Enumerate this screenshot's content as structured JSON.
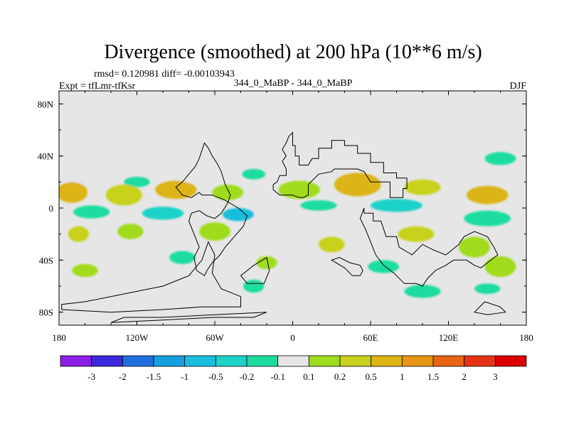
{
  "chart_data": {
    "type": "heatmap",
    "title": "Divergence (smoothed) at 200 hPa (10**6 m/s)",
    "stats": "rmsd= 0.120981 diff= -0.00103943",
    "experiment": "Expt = tfLmr-tfKsr",
    "center_label": "344_0_MaBP - 344_0_MaBP",
    "season": "DJF",
    "xlim": [
      -180,
      180
    ],
    "ylim": [
      -90,
      90
    ],
    "x_ticks": [
      {
        "value": -180,
        "label": "180"
      },
      {
        "value": -120,
        "label": "120W"
      },
      {
        "value": -60,
        "label": "60W"
      },
      {
        "value": 0,
        "label": "0"
      },
      {
        "value": 60,
        "label": "60E"
      },
      {
        "value": 120,
        "label": "120E"
      },
      {
        "value": 180,
        "label": "180"
      }
    ],
    "y_ticks": [
      {
        "value": 80,
        "label": "80N"
      },
      {
        "value": 40,
        "label": "40N"
      },
      {
        "value": 0,
        "label": "0"
      },
      {
        "value": -40,
        "label": "40S"
      },
      {
        "value": -80,
        "label": "80S"
      }
    ],
    "colorbar": {
      "labels": [
        "-3",
        "-2",
        "-1.5",
        "-1",
        "-0.5",
        "-0.2",
        "-0.1",
        "0.1",
        "0.2",
        "0.5",
        "1",
        "1.5",
        "2",
        "3"
      ],
      "colors": [
        "#8c1ee6",
        "#3c28dc",
        "#1e6edc",
        "#14a0dc",
        "#18bedc",
        "#1ed2c8",
        "#1edca0",
        "#e6e6e6",
        "#a0dc1e",
        "#c8d21e",
        "#dcb414",
        "#e69614",
        "#e66414",
        "#e63214",
        "#dc0000"
      ]
    },
    "field_patches": [
      {
        "lon": -165,
        "lat": 22,
        "rlon": 14,
        "rlat": 5,
        "class": 7
      },
      {
        "lon": -120,
        "lat": 20,
        "rlon": 10,
        "rlat": 4,
        "class": 6
      },
      {
        "lon": -78,
        "lat": 24,
        "rlon": 12,
        "rlat": 5,
        "class": 7
      },
      {
        "lon": -30,
        "lat": 26,
        "rlon": 9,
        "rlat": 4,
        "class": 6
      },
      {
        "lon": 0,
        "lat": 40,
        "rlon": 10,
        "rlat": 4,
        "class": 7
      },
      {
        "lon": 40,
        "lat": 38,
        "rlon": 12,
        "rlat": 5,
        "class": 7
      },
      {
        "lon": 100,
        "lat": 40,
        "rlon": 14,
        "rlat": 5,
        "class": 7
      },
      {
        "lon": 160,
        "lat": 38,
        "rlon": 12,
        "rlat": 5,
        "class": 6
      },
      {
        "lon": -170,
        "lat": 12,
        "rlon": 12,
        "rlat": 8,
        "class": 10
      },
      {
        "lon": -130,
        "lat": 10,
        "rlon": 14,
        "rlat": 8,
        "class": 9
      },
      {
        "lon": -90,
        "lat": 14,
        "rlon": 16,
        "rlat": 7,
        "class": 10
      },
      {
        "lon": -50,
        "lat": 12,
        "rlon": 12,
        "rlat": 6,
        "class": 8
      },
      {
        "lon": 5,
        "lat": 14,
        "rlon": 16,
        "rlat": 7,
        "class": 8
      },
      {
        "lon": 50,
        "lat": 18,
        "rlon": 18,
        "rlat": 9,
        "class": 10
      },
      {
        "lon": 100,
        "lat": 16,
        "rlon": 14,
        "rlat": 6,
        "class": 9
      },
      {
        "lon": 150,
        "lat": 10,
        "rlon": 16,
        "rlat": 7,
        "class": 10
      },
      {
        "lon": -155,
        "lat": -3,
        "rlon": 14,
        "rlat": 5,
        "class": 6
      },
      {
        "lon": -100,
        "lat": -4,
        "rlon": 16,
        "rlat": 5,
        "class": 5
      },
      {
        "lon": -42,
        "lat": -5,
        "rlon": 12,
        "rlat": 5,
        "class": 4
      },
      {
        "lon": 20,
        "lat": 2,
        "rlon": 14,
        "rlat": 4,
        "class": 6
      },
      {
        "lon": 80,
        "lat": 2,
        "rlon": 20,
        "rlat": 5,
        "class": 5
      },
      {
        "lon": 150,
        "lat": -8,
        "rlon": 18,
        "rlat": 6,
        "class": 6
      },
      {
        "lon": -165,
        "lat": -20,
        "rlon": 8,
        "rlat": 6,
        "class": 9
      },
      {
        "lon": -125,
        "lat": -18,
        "rlon": 10,
        "rlat": 6,
        "class": 8
      },
      {
        "lon": -60,
        "lat": -18,
        "rlon": 12,
        "rlat": 7,
        "class": 8
      },
      {
        "lon": 30,
        "lat": -28,
        "rlon": 10,
        "rlat": 6,
        "class": 9
      },
      {
        "lon": 95,
        "lat": -20,
        "rlon": 14,
        "rlat": 6,
        "class": 9
      },
      {
        "lon": 140,
        "lat": -30,
        "rlon": 12,
        "rlat": 8,
        "class": 8
      },
      {
        "lon": -85,
        "lat": -38,
        "rlon": 10,
        "rlat": 5,
        "class": 6
      },
      {
        "lon": -20,
        "lat": -42,
        "rlon": 8,
        "rlat": 5,
        "class": 8
      },
      {
        "lon": 70,
        "lat": -45,
        "rlon": 12,
        "rlat": 5,
        "class": 6
      },
      {
        "lon": 160,
        "lat": -45,
        "rlon": 12,
        "rlat": 8,
        "class": 8
      },
      {
        "lon": -160,
        "lat": -48,
        "rlon": 10,
        "rlat": 5,
        "class": 8
      },
      {
        "lon": -30,
        "lat": -60,
        "rlon": 8,
        "rlat": 5,
        "class": 6
      },
      {
        "lon": 100,
        "lat": -64,
        "rlon": 14,
        "rlat": 5,
        "class": 6
      },
      {
        "lon": 150,
        "lat": -62,
        "rlon": 10,
        "rlat": 4,
        "class": 6
      }
    ],
    "continents": [
      [
        [
          0,
          58
        ],
        [
          0,
          48
        ],
        [
          2,
          48
        ],
        [
          2,
          40
        ],
        [
          5,
          40
        ],
        [
          5,
          33
        ],
        [
          12,
          33
        ],
        [
          15,
          38
        ],
        [
          20,
          38
        ],
        [
          20,
          46
        ],
        [
          30,
          46
        ],
        [
          30,
          52
        ],
        [
          40,
          52
        ],
        [
          40,
          48
        ],
        [
          50,
          48
        ],
        [
          50,
          42
        ],
        [
          60,
          42
        ],
        [
          60,
          35
        ],
        [
          70,
          35
        ],
        [
          70,
          27
        ],
        [
          80,
          27
        ],
        [
          80,
          23
        ],
        [
          88,
          23
        ],
        [
          88,
          15
        ],
        [
          85,
          15
        ],
        [
          85,
          8
        ],
        [
          75,
          8
        ],
        [
          75,
          20
        ],
        [
          60,
          20
        ],
        [
          55,
          28
        ],
        [
          50,
          30
        ],
        [
          40,
          30
        ],
        [
          32,
          30
        ],
        [
          30,
          28
        ],
        [
          20,
          26
        ],
        [
          12,
          18
        ],
        [
          12,
          10
        ],
        [
          8,
          8
        ],
        [
          5,
          8
        ],
        [
          0,
          10
        ],
        [
          -10,
          10
        ],
        [
          -15,
          14
        ],
        [
          -15,
          18
        ],
        [
          -12,
          20
        ],
        [
          -10,
          25
        ],
        [
          -5,
          25
        ],
        [
          -5,
          30
        ],
        [
          -8,
          36
        ],
        [
          -5,
          40
        ],
        [
          -8,
          45
        ],
        [
          -5,
          50
        ],
        [
          -3,
          55
        ],
        [
          0,
          58
        ]
      ],
      [
        [
          -55,
          28
        ],
        [
          -58,
          34
        ],
        [
          -62,
          40
        ],
        [
          -65,
          46
        ],
        [
          -68,
          50
        ],
        [
          -72,
          38
        ],
        [
          -75,
          32
        ],
        [
          -80,
          26
        ],
        [
          -85,
          20
        ],
        [
          -90,
          16
        ],
        [
          -85,
          10
        ],
        [
          -78,
          8
        ],
        [
          -72,
          12
        ],
        [
          -70,
          10
        ],
        [
          -62,
          10
        ],
        [
          -52,
          6
        ],
        [
          -42,
          0
        ],
        [
          -35,
          -6
        ],
        [
          -38,
          -14
        ],
        [
          -45,
          -22
        ],
        [
          -52,
          -30
        ],
        [
          -56,
          -36
        ],
        [
          -62,
          -42
        ],
        [
          -66,
          -48
        ],
        [
          -68,
          -52
        ],
        [
          -74,
          -48
        ],
        [
          -76,
          -38
        ],
        [
          -72,
          -30
        ],
        [
          -76,
          -20
        ],
        [
          -80,
          -10
        ],
        [
          -78,
          -4
        ],
        [
          -72,
          -2
        ],
        [
          -66,
          -6
        ],
        [
          -60,
          -8
        ],
        [
          -55,
          -4
        ],
        [
          -50,
          4
        ],
        [
          -48,
          10
        ],
        [
          -52,
          18
        ],
        [
          -55,
          28
        ]
      ],
      [
        [
          -65,
          -26
        ],
        [
          -70,
          -40
        ],
        [
          -80,
          -52
        ],
        [
          -100,
          -60
        ],
        [
          -130,
          -66
        ],
        [
          -160,
          -72
        ],
        [
          -178,
          -74
        ],
        [
          -178,
          -78
        ],
        [
          -140,
          -80
        ],
        [
          -100,
          -78
        ],
        [
          -70,
          -76
        ],
        [
          -40,
          -76
        ],
        [
          -40,
          -68
        ],
        [
          -55,
          -62
        ],
        [
          -62,
          -50
        ],
        [
          -60,
          -36
        ],
        [
          -65,
          -26
        ]
      ],
      [
        [
          -20,
          -38
        ],
        [
          -30,
          -44
        ],
        [
          -40,
          -52
        ],
        [
          -35,
          -58
        ],
        [
          -22,
          -58
        ],
        [
          -18,
          -48
        ],
        [
          -20,
          -38
        ]
      ],
      [
        [
          55,
          0
        ],
        [
          55,
          -4
        ],
        [
          62,
          -4
        ],
        [
          62,
          -10
        ],
        [
          68,
          -10
        ],
        [
          72,
          -22
        ],
        [
          80,
          -22
        ],
        [
          82,
          -30
        ],
        [
          92,
          -36
        ],
        [
          100,
          -28
        ],
        [
          108,
          -32
        ],
        [
          118,
          -36
        ],
        [
          128,
          -28
        ],
        [
          132,
          -22
        ],
        [
          140,
          -18
        ],
        [
          150,
          -22
        ],
        [
          155,
          -30
        ],
        [
          158,
          -36
        ],
        [
          150,
          -42
        ],
        [
          145,
          -46
        ],
        [
          140,
          -44
        ],
        [
          134,
          -40
        ],
        [
          124,
          -40
        ],
        [
          118,
          -44
        ],
        [
          110,
          -48
        ],
        [
          104,
          -54
        ],
        [
          100,
          -60
        ],
        [
          95,
          -58
        ],
        [
          86,
          -58
        ],
        [
          78,
          -50
        ],
        [
          70,
          -44
        ],
        [
          64,
          -36
        ],
        [
          60,
          -26
        ],
        [
          56,
          -16
        ],
        [
          52,
          -8
        ],
        [
          55,
          0
        ]
      ],
      [
        [
          30,
          -40
        ],
        [
          40,
          -46
        ],
        [
          46,
          -52
        ],
        [
          52,
          -52
        ],
        [
          54,
          -48
        ],
        [
          52,
          -44
        ],
        [
          44,
          -42
        ],
        [
          36,
          -38
        ],
        [
          30,
          -40
        ]
      ],
      [
        [
          148,
          -72
        ],
        [
          160,
          -76
        ],
        [
          164,
          -80
        ],
        [
          150,
          -82
        ],
        [
          140,
          -80
        ],
        [
          148,
          -72
        ]
      ],
      [
        [
          -140,
          -88
        ],
        [
          -100,
          -86
        ],
        [
          -60,
          -84
        ],
        [
          -30,
          -84
        ],
        [
          -20,
          -80
        ],
        [
          -60,
          -82
        ],
        [
          -100,
          -84
        ],
        [
          -130,
          -84
        ],
        [
          -140,
          -88
        ]
      ]
    ]
  }
}
